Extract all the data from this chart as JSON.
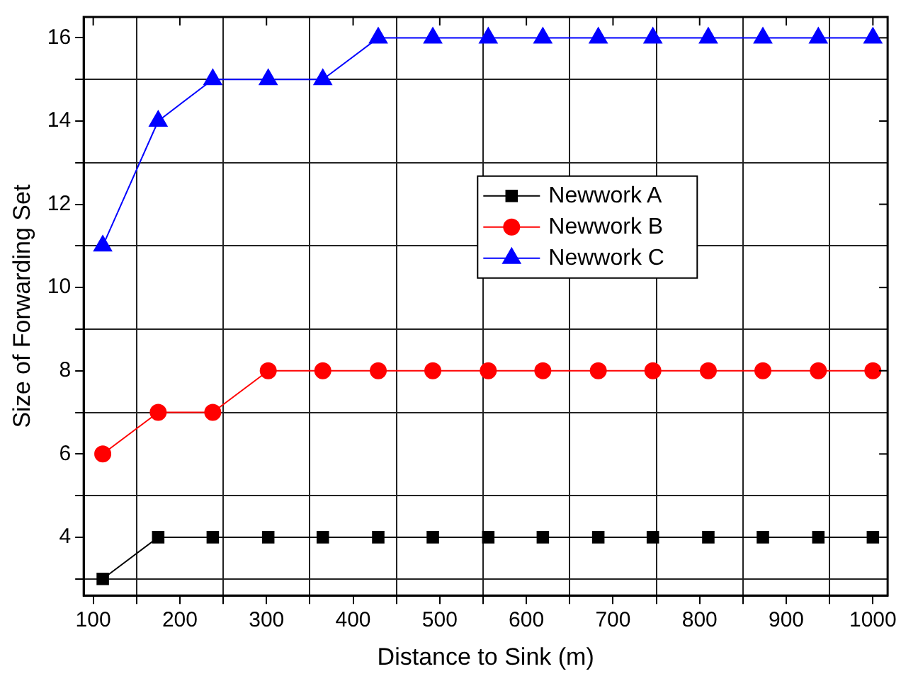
{
  "chart_data": {
    "type": "line",
    "xlabel": "Distance to Sink (m)",
    "ylabel": "Size of Forwarding Set",
    "x": [
      111,
      175,
      238,
      302,
      365,
      429,
      492,
      556,
      619,
      683,
      746,
      810,
      873,
      937,
      1000
    ],
    "series": [
      {
        "name": "Newwork A",
        "color": "#000000",
        "marker": "square",
        "values": [
          3,
          4,
          4,
          4,
          4,
          4,
          4,
          4,
          4,
          4,
          4,
          4,
          4,
          4,
          4
        ]
      },
      {
        "name": "Newwork B",
        "color": "#ff0000",
        "marker": "circle",
        "values": [
          6,
          7,
          7,
          8,
          8,
          8,
          8,
          8,
          8,
          8,
          8,
          8,
          8,
          8,
          8
        ]
      },
      {
        "name": "Newwork C",
        "color": "#0000ff",
        "marker": "triangle",
        "values": [
          11,
          14,
          15,
          15,
          15,
          16,
          16,
          16,
          16,
          16,
          16,
          16,
          16,
          16,
          16
        ]
      }
    ],
    "xlim": [
      89,
      1017
    ],
    "xticks": [
      100,
      {
        "value": 150,
        "label": null
      },
      200,
      {
        "value": 250,
        "label": null
      },
      300,
      {
        "value": 350,
        "label": null
      },
      400,
      {
        "value": 450,
        "label": null
      },
      500,
      {
        "value": 550,
        "label": null
      },
      600,
      {
        "value": 650,
        "label": null
      },
      700,
      {
        "value": 750,
        "label": null
      },
      800,
      {
        "value": 850,
        "label": null
      },
      900,
      {
        "value": 950,
        "label": null
      },
      1000
    ],
    "ylim": [
      2.6,
      16.5
    ],
    "yticks": [
      {
        "value": 3,
        "label": null
      },
      4,
      {
        "value": 5,
        "label": null
      },
      6,
      {
        "value": 7,
        "label": null
      },
      8,
      {
        "value": 9,
        "label": null
      },
      10,
      {
        "value": 11,
        "label": null
      },
      12,
      {
        "value": 13,
        "label": null
      },
      14,
      {
        "value": 15,
        "label": null
      },
      16
    ],
    "grid": true,
    "legend": "top right",
    "line_style": "solid"
  }
}
